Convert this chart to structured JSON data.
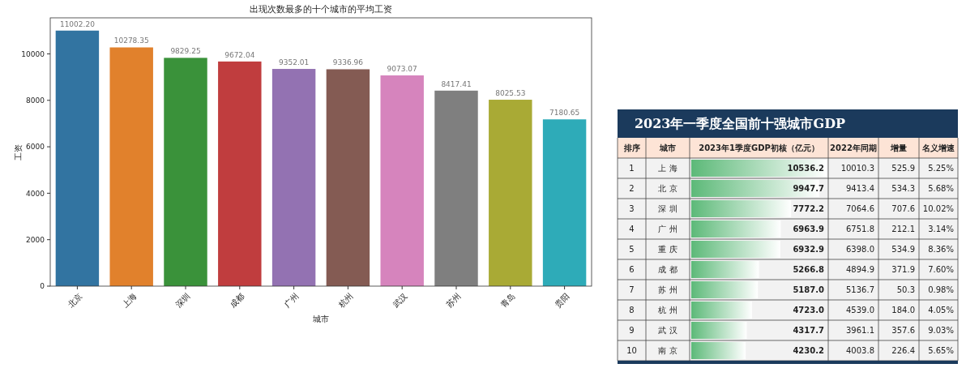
{
  "chart_data": [
    {
      "type": "bar",
      "title": "出现次数最多的十个城市的平均工资",
      "xlabel": "城市",
      "ylabel": "工资",
      "categories": [
        "北京",
        "上海",
        "深圳",
        "成都",
        "广州",
        "杭州",
        "武汉",
        "苏州",
        "青岛",
        "贵阳"
      ],
      "values": [
        11002.2,
        10278.35,
        9829.25,
        9672.04,
        9352.01,
        9336.96,
        9073.07,
        8417.41,
        8025.53,
        7180.65
      ],
      "value_labels": [
        "11002.20",
        "10278.35",
        "9829.25",
        "9672.04",
        "9352.01",
        "9336.96",
        "9073.07",
        "8417.41",
        "8025.53",
        "7180.65"
      ],
      "colors": [
        "#3274a1",
        "#e1812c",
        "#3a923a",
        "#c03d3e",
        "#9372b2",
        "#845b53",
        "#d684bd",
        "#7f7f7f",
        "#a9aa35",
        "#2eabb8"
      ],
      "ylim": [
        0,
        11552
      ],
      "yticks": [
        0,
        2000,
        4000,
        6000,
        8000,
        10000
      ],
      "grid": false
    },
    {
      "type": "bar",
      "orientation": "horizontal",
      "title": "2023年一季度全国前十强城市GDP",
      "categories": [
        "上 海",
        "北 京",
        "深 圳",
        "广 州",
        "重 庆",
        "成 都",
        "苏 州",
        "杭 州",
        "武 汉",
        "南 京"
      ],
      "values": [
        10536.2,
        9947.7,
        7772.2,
        6963.9,
        6932.9,
        5266.8,
        5187.0,
        4723.0,
        4317.7,
        4230.2
      ],
      "value_labels": [
        "10536.2",
        "9947.7",
        "7772.2",
        "6963.9",
        "6932.9",
        "5266.8",
        "5187.0",
        "4723.0",
        "4317.7",
        "4230.2"
      ],
      "color": "#5cb978",
      "annotations": [
        "排序",
        "城市",
        "2023年1季度GDP初核（亿元）",
        "2022年同期",
        "增量",
        "名义增速",
        "1",
        "10010.3",
        "525.9",
        "5.25%",
        "2",
        "9413.4",
        "534.3",
        "5.68%",
        "3",
        "7064.6",
        "707.6",
        "10.02%",
        "4",
        "6751.8",
        "212.1",
        "3.14%",
        "5",
        "6398.0",
        "534.9",
        "8.36%",
        "6",
        "4894.9",
        "371.9",
        "7.60%",
        "7",
        "5136.7",
        "50.3",
        "0.98%",
        "8",
        "4539.0",
        "184.0",
        "4.05%",
        "9",
        "3961.1",
        "357.6",
        "9.03%",
        "10",
        "4003.8",
        "226.4",
        "5.65%"
      ]
    }
  ]
}
